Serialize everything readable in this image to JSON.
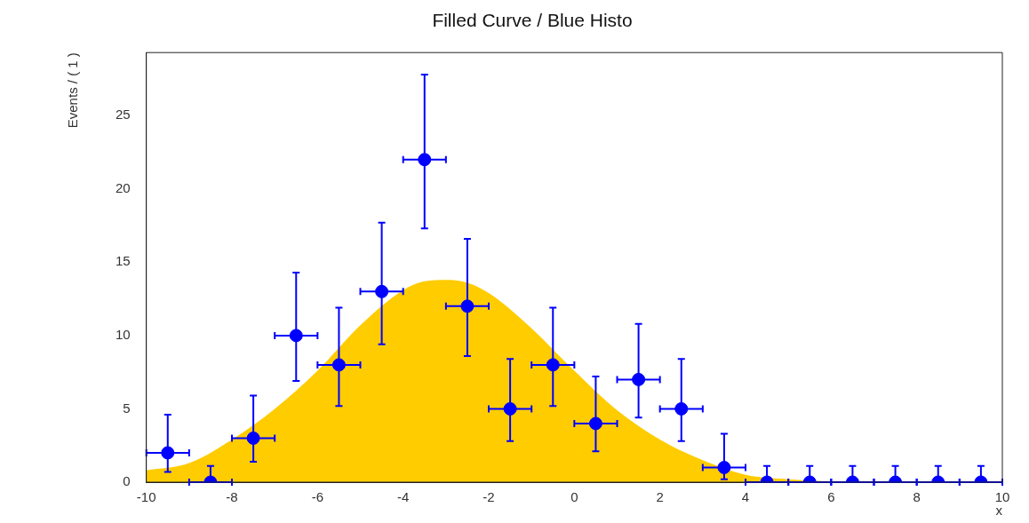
{
  "chart_data": {
    "type": "scatter",
    "title": "Filled Curve / Blue Histo",
    "xlabel": "x",
    "ylabel": "Events / ( 1 )",
    "xlim": [
      -10,
      10
    ],
    "xticks": [
      -10,
      -8,
      -6,
      -4,
      -2,
      0,
      2,
      4,
      6,
      8,
      10
    ],
    "ylim": [
      0,
      29.3
    ],
    "yticks": [
      0,
      5,
      10,
      15,
      20,
      25
    ],
    "grid": false,
    "series": [
      {
        "type": "area",
        "color": "#ffcc00",
        "x": [
          -10,
          -9,
          -8,
          -7,
          -6,
          -5,
          -4,
          -3.5,
          -3,
          -2.5,
          -2,
          -1,
          0,
          1,
          2,
          3,
          4,
          5,
          6,
          7,
          8,
          9,
          10
        ],
        "values": [
          0.8,
          1.3,
          2.9,
          5.0,
          7.6,
          10.7,
          13.1,
          13.7,
          13.8,
          13.6,
          12.9,
          10.5,
          7.6,
          4.9,
          2.9,
          1.5,
          0.5,
          0.2,
          0.05,
          0,
          0,
          0,
          0
        ]
      },
      {
        "type": "scatter",
        "color": "#0000ff",
        "marker": "circle",
        "x": [
          -9.5,
          -8.5,
          -7.5,
          -6.5,
          -5.5,
          -4.5,
          -3.5,
          -2.5,
          -1.5,
          -0.5,
          0.5,
          1.5,
          2.5,
          3.5,
          4.5,
          5.5,
          6.5,
          7.5,
          8.5,
          9.5
        ],
        "values": [
          2,
          0,
          3,
          10,
          8,
          13,
          22,
          12,
          5,
          8,
          4,
          7,
          5,
          1,
          0,
          0,
          0,
          0,
          0,
          0
        ],
        "errors": [
          [
            0.7,
            4.6
          ],
          [
            0,
            1.1
          ],
          [
            1.4,
            5.9
          ],
          [
            6.9,
            14.3
          ],
          [
            5.2,
            11.9
          ],
          [
            9.4,
            17.7
          ],
          [
            17.3,
            27.8
          ],
          [
            8.6,
            16.6
          ],
          [
            2.8,
            8.4
          ],
          [
            5.2,
            11.9
          ],
          [
            2.1,
            7.2
          ],
          [
            4.4,
            10.8
          ],
          [
            2.8,
            8.4
          ],
          [
            0.2,
            3.3
          ],
          [
            0,
            1.1
          ],
          [
            0,
            1.1
          ],
          [
            0,
            1.1
          ],
          [
            0,
            1.1
          ],
          [
            0,
            1.1
          ],
          [
            0,
            1.1
          ]
        ],
        "xerrors": [
          0.5,
          0.5,
          0.5,
          0.5,
          0.5,
          0.5,
          0.5,
          0.5,
          0.5,
          0.5,
          0.5,
          0.5,
          0.5,
          0.5,
          0.5,
          0.5,
          0.5,
          0.5,
          0.5,
          0.5
        ]
      }
    ]
  }
}
